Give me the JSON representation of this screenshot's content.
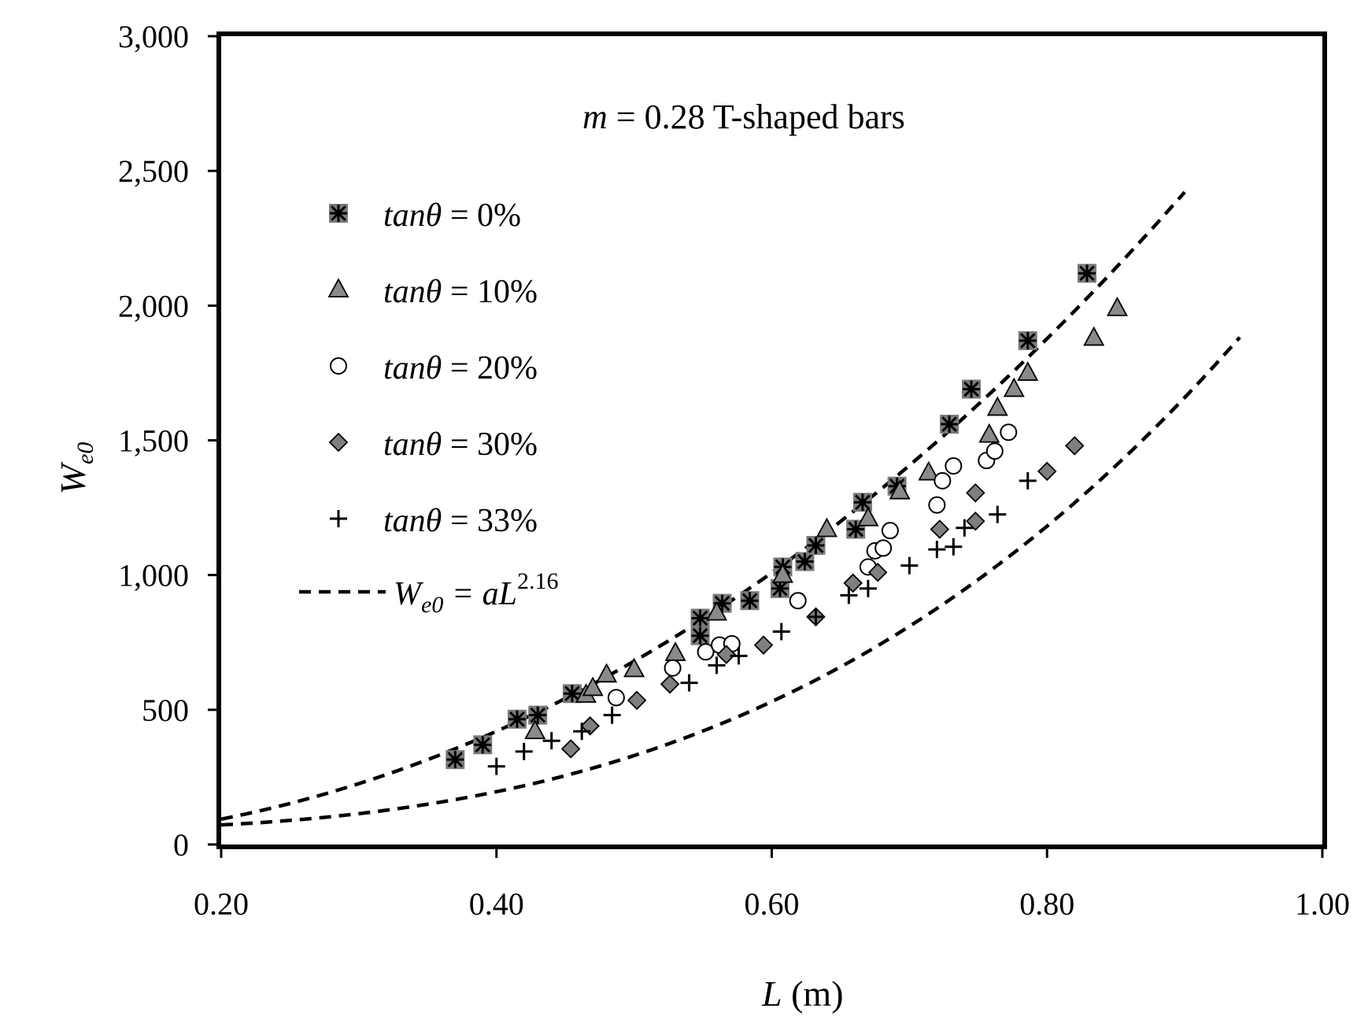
{
  "chart_data": {
    "type": "scatter",
    "title": "",
    "annotation": {
      "variable": "m",
      "text": " = 0.28 T-shaped bars"
    },
    "xlabel": {
      "variable": "L",
      "unit": " (m)"
    },
    "ylabel": {
      "base": "W",
      "subscript": "e0"
    },
    "xlim": [
      0.2,
      1.0
    ],
    "ylim": [
      0,
      3000
    ],
    "x_ticks": [
      0.2,
      0.4,
      0.6,
      0.8,
      1.0
    ],
    "x_tick_labels": [
      "0.20",
      "0.40",
      "0.60",
      "0.80",
      "1.00"
    ],
    "y_ticks": [
      0,
      500,
      1000,
      1500,
      2000,
      2500,
      3000
    ],
    "y_tick_labels": [
      "0",
      "500",
      "1,000",
      "1,500",
      "2,000",
      "2,500",
      "3,000"
    ],
    "legend_position": "upper-left",
    "series": [
      {
        "name": "tanθ = 0%",
        "label_var": "tanθ",
        "label_val": " = 0%",
        "marker": "asterisk-square",
        "color": "#7a7a7a",
        "points": [
          [
            0.37,
            315
          ],
          [
            0.39,
            370
          ],
          [
            0.415,
            465
          ],
          [
            0.43,
            480
          ],
          [
            0.455,
            560
          ],
          [
            0.548,
            840
          ],
          [
            0.548,
            775
          ],
          [
            0.564,
            895
          ],
          [
            0.584,
            905
          ],
          [
            0.606,
            950
          ],
          [
            0.608,
            1030
          ],
          [
            0.624,
            1050
          ],
          [
            0.632,
            1110
          ],
          [
            0.661,
            1170
          ],
          [
            0.666,
            1270
          ],
          [
            0.691,
            1330
          ],
          [
            0.729,
            1560
          ],
          [
            0.745,
            1690
          ],
          [
            0.786,
            1870
          ],
          [
            0.829,
            2120
          ]
        ]
      },
      {
        "name": "tanθ = 10%",
        "label_var": "tanθ",
        "label_val": " = 10%",
        "marker": "triangle",
        "color": "#8a8a8a",
        "points": [
          [
            0.428,
            420
          ],
          [
            0.465,
            555
          ],
          [
            0.47,
            580
          ],
          [
            0.48,
            630
          ],
          [
            0.5,
            650
          ],
          [
            0.53,
            710
          ],
          [
            0.56,
            860
          ],
          [
            0.608,
            1000
          ],
          [
            0.64,
            1170
          ],
          [
            0.67,
            1210
          ],
          [
            0.693,
            1310
          ],
          [
            0.714,
            1380
          ],
          [
            0.758,
            1520
          ],
          [
            0.764,
            1620
          ],
          [
            0.776,
            1690
          ],
          [
            0.786,
            1750
          ],
          [
            0.834,
            1880
          ],
          [
            0.851,
            1990
          ]
        ]
      },
      {
        "name": "tanθ = 20%",
        "label_var": "tanθ",
        "label_val": " = 20%",
        "marker": "circle",
        "color": "#ffffff",
        "points": [
          [
            0.487,
            545
          ],
          [
            0.528,
            655
          ],
          [
            0.552,
            715
          ],
          [
            0.562,
            740
          ],
          [
            0.571,
            745
          ],
          [
            0.619,
            905
          ],
          [
            0.67,
            1030
          ],
          [
            0.675,
            1090
          ],
          [
            0.681,
            1100
          ],
          [
            0.686,
            1165
          ],
          [
            0.72,
            1260
          ],
          [
            0.724,
            1350
          ],
          [
            0.732,
            1405
          ],
          [
            0.756,
            1425
          ],
          [
            0.762,
            1460
          ],
          [
            0.772,
            1530
          ]
        ]
      },
      {
        "name": "tanθ = 30%",
        "label_var": "tanθ",
        "label_val": " = 30%",
        "marker": "diamond",
        "color": "#7f7f7f",
        "points": [
          [
            0.454,
            355
          ],
          [
            0.468,
            440
          ],
          [
            0.502,
            535
          ],
          [
            0.526,
            595
          ],
          [
            0.567,
            705
          ],
          [
            0.594,
            740
          ],
          [
            0.632,
            845
          ],
          [
            0.659,
            970
          ],
          [
            0.677,
            1010
          ],
          [
            0.722,
            1170
          ],
          [
            0.748,
            1200
          ],
          [
            0.748,
            1305
          ],
          [
            0.8,
            1385
          ],
          [
            0.82,
            1480
          ]
        ]
      },
      {
        "name": "tanθ = 33%",
        "label_var": "tanθ",
        "label_val": " = 33%",
        "marker": "plus",
        "color": "#000000",
        "points": [
          [
            0.4,
            290
          ],
          [
            0.42,
            345
          ],
          [
            0.44,
            385
          ],
          [
            0.462,
            420
          ],
          [
            0.484,
            480
          ],
          [
            0.54,
            600
          ],
          [
            0.56,
            665
          ],
          [
            0.576,
            700
          ],
          [
            0.607,
            790
          ],
          [
            0.632,
            845
          ],
          [
            0.656,
            925
          ],
          [
            0.67,
            950
          ],
          [
            0.7,
            1035
          ],
          [
            0.72,
            1095
          ],
          [
            0.732,
            1105
          ],
          [
            0.74,
            1175
          ],
          [
            0.764,
            1225
          ],
          [
            0.786,
            1350
          ]
        ]
      }
    ],
    "fit": {
      "name": "We0 = aL^2.16",
      "label_base": "W",
      "label_sub": "e0",
      "label_mid": " = aL",
      "label_exp": "2.16",
      "exponent": 2.16,
      "curves": [
        {
          "a": 3040,
          "x_range": [
            0.2,
            0.9
          ]
        },
        {
          "a": 2200,
          "x_range": [
            0.2,
            0.94
          ],
          "form": "cubic"
        }
      ]
    }
  }
}
